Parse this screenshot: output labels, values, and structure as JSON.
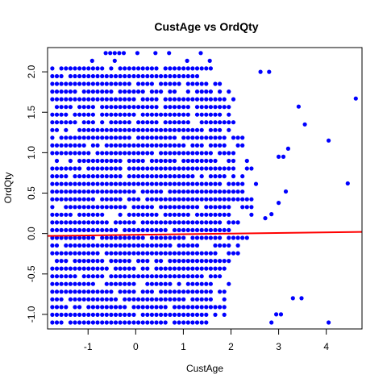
{
  "chart_data": {
    "type": "scatter",
    "title": "CustAge vs OrdQty",
    "xlabel": "CustAge",
    "ylabel": "OrdQty",
    "xlim": [
      -1.85,
      4.75
    ],
    "ylim": [
      -1.18,
      2.3
    ],
    "xticks": [
      -1,
      0,
      1,
      2,
      3,
      4
    ],
    "yticks": [
      -1.0,
      -0.5,
      0.0,
      0.5,
      1.0,
      1.5,
      2.0
    ],
    "ytick_labels": [
      "-1.0",
      "-0.5",
      "0.0",
      "0.5",
      "1.0",
      "1.5",
      "2.0"
    ],
    "xtick_labels": [
      "-1",
      "0",
      "1",
      "2",
      "3",
      "4"
    ],
    "point_color": "#0000ff",
    "fit_color": "#ff0000",
    "y_levels_min": -1.1,
    "y_levels_step": 0.0952,
    "bulk_x_min": -1.75,
    "bulk_x_step": 0.095,
    "fit_line": {
      "x": [
        -1.85,
        4.75
      ],
      "y": [
        -0.03,
        0.02
      ]
    },
    "outliers": [
      {
        "x": 4.62,
        "y": 1.67
      },
      {
        "x": 4.45,
        "y": 0.62
      },
      {
        "x": 4.05,
        "y": 1.15
      },
      {
        "x": 4.05,
        "y": -1.1
      },
      {
        "x": 3.55,
        "y": 1.35
      },
      {
        "x": 3.42,
        "y": 1.57
      },
      {
        "x": 3.48,
        "y": -0.8
      },
      {
        "x": 3.3,
        "y": -0.8
      },
      {
        "x": 3.15,
        "y": 0.52
      },
      {
        "x": 3.2,
        "y": 1.05
      },
      {
        "x": 3.0,
        "y": 0.38
      },
      {
        "x": 3.05,
        "y": -1.0
      },
      {
        "x": 2.95,
        "y": -1.0
      },
      {
        "x": 2.85,
        "y": -1.1
      },
      {
        "x": 2.8,
        "y": 2.0
      },
      {
        "x": 2.62,
        "y": 2.0
      },
      {
        "x": 2.72,
        "y": 0.19
      },
      {
        "x": 3.0,
        "y": 0.95
      },
      {
        "x": 2.85,
        "y": 0.24
      },
      {
        "x": 3.1,
        "y": 0.95
      }
    ]
  }
}
